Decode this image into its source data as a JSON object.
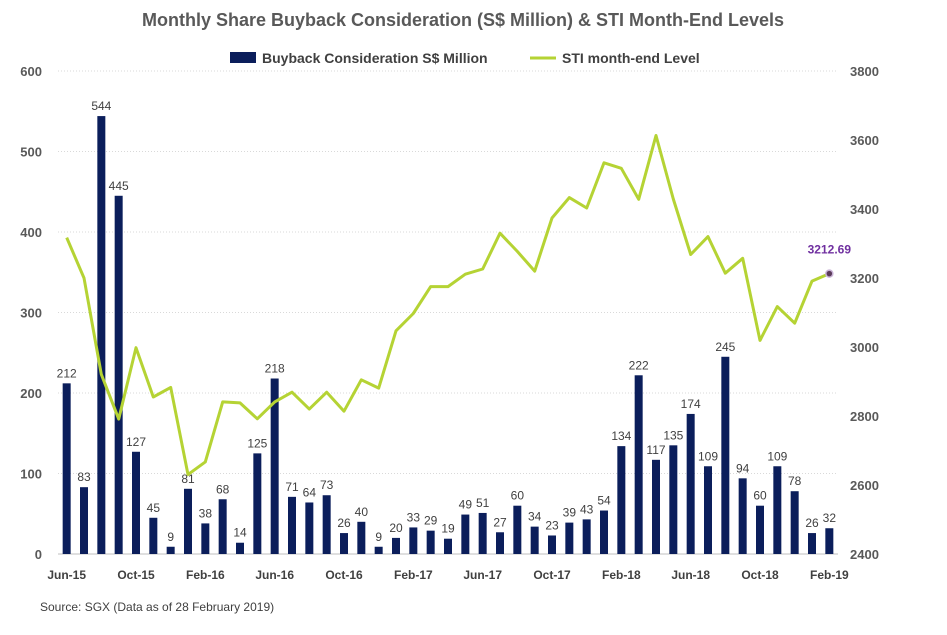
{
  "chart_data": {
    "type": "bar",
    "title": "Monthly Share Buyback Consideration (S$ Million) & STI Month-End Levels",
    "categories": [
      "Jun-15",
      "Jul-15",
      "Aug-15",
      "Sep-15",
      "Oct-15",
      "Nov-15",
      "Dec-15",
      "Jan-16",
      "Feb-16",
      "Mar-16",
      "Apr-16",
      "May-16",
      "Jun-16",
      "Jul-16",
      "Aug-16",
      "Sep-16",
      "Oct-16",
      "Nov-16",
      "Dec-16",
      "Jan-17",
      "Feb-17",
      "Mar-17",
      "Apr-17",
      "May-17",
      "Jun-17",
      "Jul-17",
      "Aug-17",
      "Sep-17",
      "Oct-17",
      "Nov-17",
      "Dec-17",
      "Jan-18",
      "Feb-18",
      "Mar-18",
      "Apr-18",
      "May-18",
      "Jun-18",
      "Jul-18",
      "Aug-18",
      "Sep-18",
      "Oct-18",
      "Nov-18",
      "Dec-18",
      "Jan-19",
      "Feb-19"
    ],
    "x_tick_labels": [
      "Jun-15",
      "Oct-15",
      "Feb-16",
      "Jun-16",
      "Oct-16",
      "Feb-17",
      "Jun-17",
      "Oct-17",
      "Feb-18",
      "Jun-18",
      "Oct-18",
      "Feb-19"
    ],
    "x_tick_indices": [
      0,
      4,
      8,
      12,
      16,
      20,
      24,
      28,
      32,
      36,
      40,
      44
    ],
    "series": [
      {
        "name": "Buyback Consideration S$ Million",
        "type": "bar",
        "axis": "left",
        "color": "#0b1e5b",
        "values": [
          212,
          83,
          544,
          445,
          127,
          45,
          9,
          81,
          38,
          68,
          14,
          125,
          218,
          71,
          64,
          73,
          26,
          40,
          9,
          20,
          33,
          29,
          19,
          49,
          51,
          27,
          60,
          34,
          23,
          39,
          43,
          54,
          134,
          222,
          117,
          135,
          174,
          109,
          245,
          94,
          60,
          109,
          78,
          26,
          32
        ]
      },
      {
        "name": "STI month-end Level",
        "type": "line",
        "axis": "right",
        "color": "#b5d334",
        "values": [
          3317,
          3200,
          2921,
          2791,
          2998,
          2855,
          2883,
          2630,
          2667,
          2841,
          2838,
          2792,
          2841,
          2869,
          2820,
          2869,
          2814,
          2905,
          2881,
          3047,
          3097,
          3175,
          3175,
          3211,
          3226,
          3330,
          3277,
          3220,
          3374,
          3433,
          3403,
          3534,
          3518,
          3428,
          3613,
          3429,
          3268,
          3320,
          3214,
          3257,
          3019,
          3117,
          3069,
          3191,
          3212.69
        ]
      }
    ],
    "y_left": {
      "min": 0,
      "max": 600,
      "ticks": [
        0,
        100,
        200,
        300,
        400,
        500,
        600
      ]
    },
    "y_right": {
      "min": 2400,
      "max": 3800,
      "ticks": [
        2400,
        2600,
        2800,
        3000,
        3200,
        3400,
        3600,
        3800
      ]
    },
    "end_label": "3212.69",
    "legend_position": "top-center",
    "grid": true,
    "source": "Source: SGX (Data as of 28 February 2019)"
  }
}
